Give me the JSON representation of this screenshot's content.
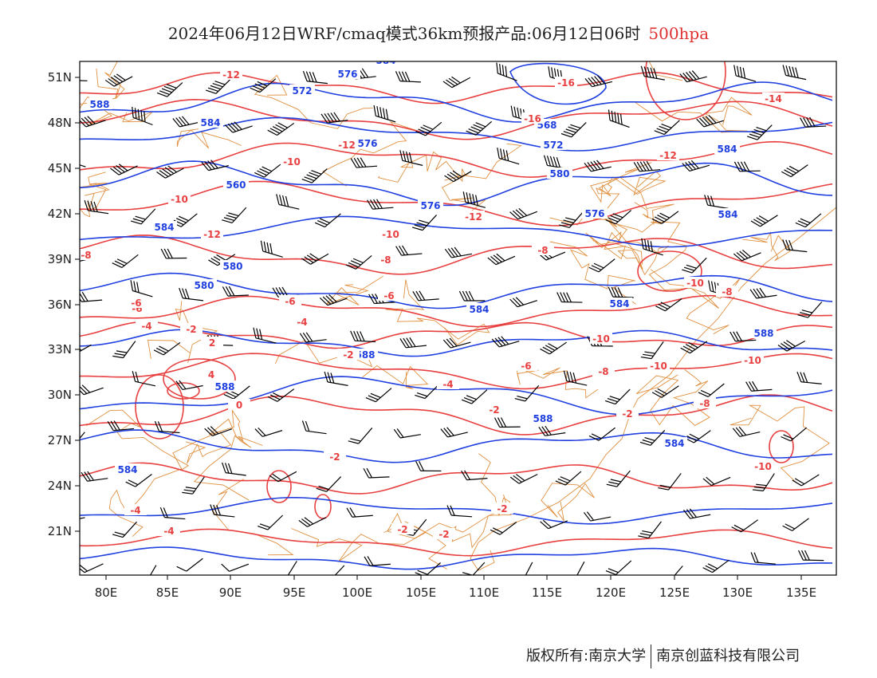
{
  "title": {
    "main": "2024年06月12日WRF/cmaq模式36km预报产品:06月12日06时",
    "level": "500hpa",
    "level_color": "#e03030"
  },
  "axes": {
    "lon_labels": [
      "80E",
      "85E",
      "90E",
      "95E",
      "100E",
      "105E",
      "110E",
      "115E",
      "120E",
      "125E",
      "130E",
      "135E"
    ],
    "lat_labels": [
      "51N",
      "48N",
      "45N",
      "42N",
      "39N",
      "36N",
      "33N",
      "30N",
      "27N",
      "24N",
      "21N"
    ]
  },
  "layers": {
    "height_contour_color": "#2040e0",
    "temperature_contour_color": "#e84040",
    "boundary_color": "#e09040",
    "wind_barb_color": "#000000"
  },
  "height_labels": [
    "584",
    "588",
    "572",
    "576",
    "584",
    "576",
    "568",
    "572",
    "580",
    "560",
    "576",
    "576",
    "584",
    "584",
    "584",
    "580",
    "580",
    "584",
    "584",
    "588",
    "588",
    "588",
    "588",
    "584",
    "584"
  ],
  "temp_labels": [
    "-12",
    "-16",
    "-16",
    "-12",
    "-12",
    "-14",
    "-12",
    "-10",
    "-10",
    "-12",
    "-10",
    "-8",
    "-8",
    "-8",
    "-10",
    "-6",
    "-8",
    "-6",
    "-6",
    "-4",
    "-4",
    "-2",
    "2",
    "4",
    "0",
    "-2",
    "-8",
    "-10",
    "-10",
    "-10",
    "-8",
    "-6",
    "-4",
    "-2",
    "-2",
    "-2",
    "-2",
    "-2",
    "-4",
    "-4",
    "-10",
    "-2",
    "-6"
  ],
  "footer": {
    "left": "版权所有:南京大学",
    "right": "南京创蓝科技有限公司"
  }
}
